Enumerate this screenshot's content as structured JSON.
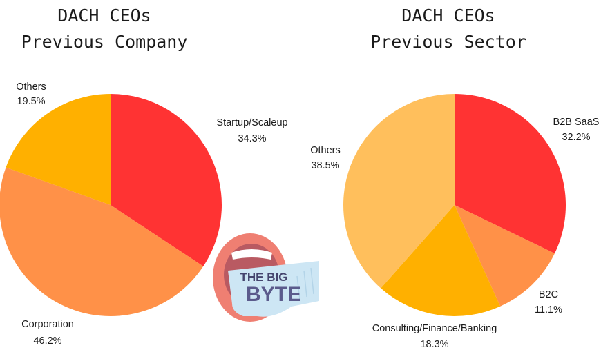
{
  "chart_data": [
    {
      "type": "pie",
      "title": [
        "DACH CEOs",
        "Previous Company"
      ],
      "slices": [
        {
          "label": "Startup/Scaleup",
          "value": 34.3,
          "display": "34.3%",
          "color": "#ff3333"
        },
        {
          "label": "Corporation",
          "value": 46.2,
          "display": "46.2%",
          "color": "#ff9148"
        },
        {
          "label": "Others",
          "value": 19.5,
          "display": "19.5%",
          "color": "#ffb000"
        }
      ]
    },
    {
      "type": "pie",
      "title": [
        "DACH CEOs",
        "Previous Sector"
      ],
      "slices": [
        {
          "label": "B2B SaaS",
          "value": 32.2,
          "display": "32.2%",
          "color": "#ff3333"
        },
        {
          "label": "B2C",
          "value": 11.1,
          "display": "11.1%",
          "color": "#ff9148"
        },
        {
          "label": "Consulting/Finance/Banking",
          "value": 18.3,
          "display": "18.3%",
          "color": "#ffb000"
        },
        {
          "label": "Others",
          "value": 38.5,
          "display": "38.5%",
          "color": "#ffbf5c"
        }
      ]
    }
  ],
  "logo": {
    "line1": "THE BIG",
    "line2": "BYTE"
  }
}
